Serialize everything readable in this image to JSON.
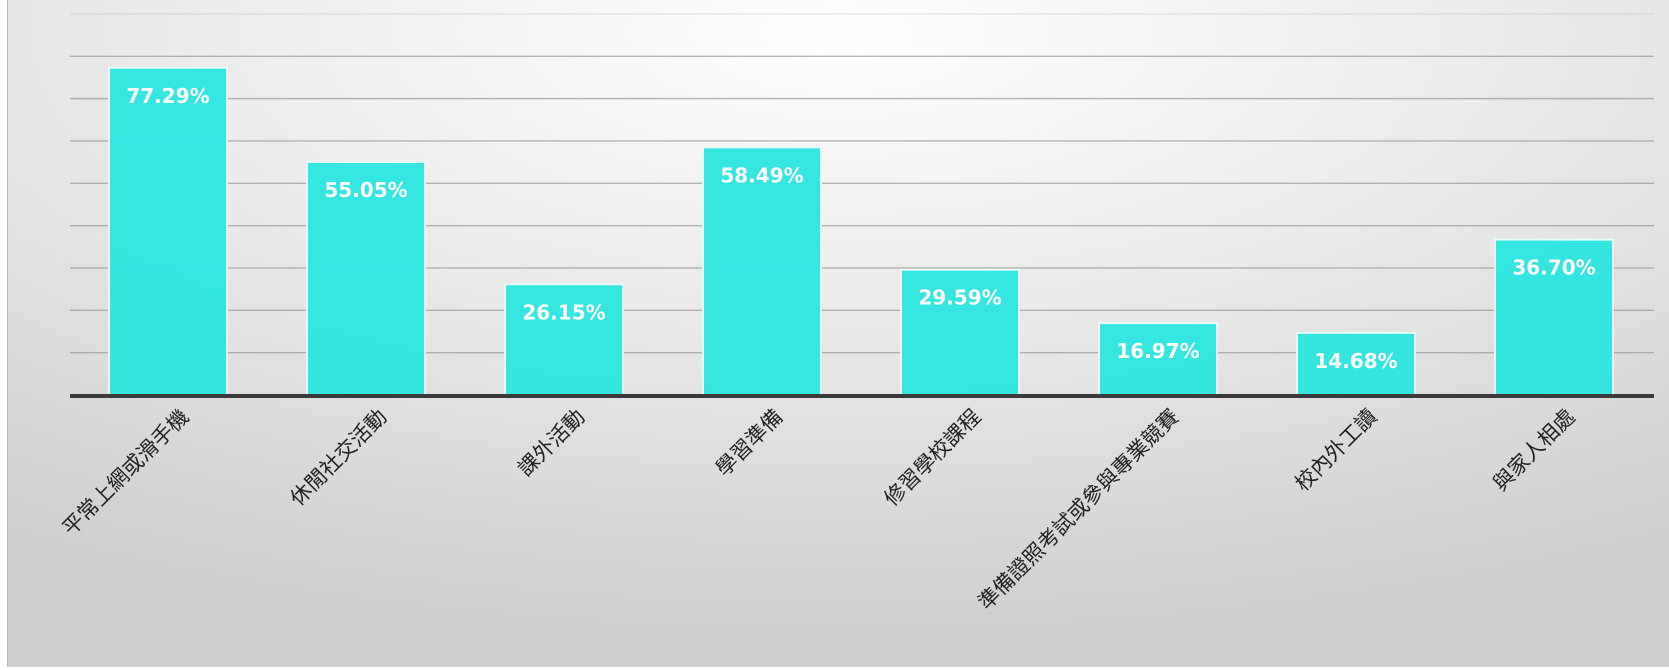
{
  "chart_data": {
    "type": "bar",
    "categories": [
      "平常上網或滑手機",
      "休閒社交活動",
      "課外活動",
      "學習準備",
      "修習學校課程",
      "準備證照考試或參與專業競賽",
      "校內外工讀",
      "與家人相處"
    ],
    "values": [
      77.29,
      55.05,
      26.15,
      58.49,
      29.59,
      16.97,
      14.68,
      36.7
    ],
    "value_labels": [
      "77.29%",
      "55.05%",
      "26.15%",
      "58.49%",
      "29.59%",
      "16.97%",
      "14.68%",
      "36.70%"
    ],
    "ylim": [
      0,
      90
    ],
    "grid": true,
    "legend": "none",
    "colors": {
      "bar": "#2ee5e0",
      "bar_stroke": "#e8fbfa",
      "grid": "#9c9c9c",
      "baseline": "#3a3a3a",
      "value_text": "#ffffff",
      "category_text": "#222222"
    }
  }
}
